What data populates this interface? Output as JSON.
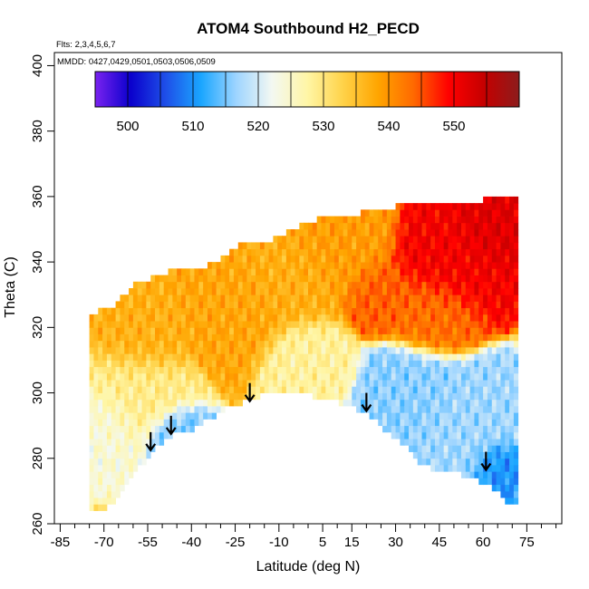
{
  "chart_data": {
    "type": "heatmap",
    "title": "ATOM4 Southbound H2_PECD",
    "flights_note": "Flts: 2,3,4,5,6,7",
    "dates_note": "MMDD: 0427,0429,0501,0503,0506,0509",
    "xlabel": "Latitude (deg N)",
    "ylabel": "Theta (C)",
    "xlim": [
      -87,
      87
    ],
    "ylim": [
      260,
      404
    ],
    "x_ticks": [
      -85,
      -70,
      -55,
      -40,
      -25,
      -10,
      5,
      15,
      30,
      45,
      60,
      75
    ],
    "x_tick_labels": [
      "-85",
      "-70",
      "-55",
      "-40",
      "-25",
      "-10",
      "5",
      "15",
      "30",
      "45",
      "60",
      "75"
    ],
    "x_minor_ticks": [
      -80,
      -75,
      -65,
      -60,
      -50,
      -45,
      -35,
      -30,
      -20,
      -15,
      -5,
      0,
      10,
      20,
      25,
      35,
      40,
      50,
      55,
      65,
      70,
      80,
      85
    ],
    "y_ticks": [
      260,
      280,
      300,
      320,
      340,
      360,
      380,
      400
    ],
    "y_tick_labels": [
      "260",
      "280",
      "300",
      "320",
      "340",
      "360",
      "380",
      "400"
    ],
    "colorbar": {
      "min": 495,
      "max": 560,
      "ticks": [
        500,
        510,
        520,
        530,
        540,
        550
      ],
      "tick_labels": [
        "500",
        "510",
        "520",
        "530",
        "540",
        "550"
      ],
      "colors": [
        "#7a22f0",
        "#0a00cc",
        "#1e4fe8",
        "#1aa6ff",
        "#9fd5ff",
        "#f3f8f2",
        "#fff6a6",
        "#ffd34a",
        "#ffa500",
        "#ff6a00",
        "#ff0000",
        "#c50000",
        "#8c1c1c"
      ]
    },
    "coverage": {
      "top": [
        [
          -72,
          324
        ],
        [
          -66,
          326
        ],
        [
          -60,
          332
        ],
        [
          -54,
          334
        ],
        [
          -48,
          336
        ],
        [
          -42,
          337
        ],
        [
          -36,
          337
        ],
        [
          -30,
          340
        ],
        [
          -24,
          344
        ],
        [
          -18,
          346
        ],
        [
          -12,
          346
        ],
        [
          -6,
          349
        ],
        [
          0,
          351
        ],
        [
          6,
          353
        ],
        [
          12,
          354
        ],
        [
          18,
          354
        ],
        [
          24,
          356
        ],
        [
          30,
          356
        ],
        [
          36,
          357
        ],
        [
          42,
          357
        ],
        [
          48,
          358
        ],
        [
          54,
          358
        ],
        [
          60,
          358
        ],
        [
          66,
          359
        ],
        [
          70,
          359
        ]
      ],
      "bottom": [
        [
          -75,
          265
        ],
        [
          -70,
          265
        ],
        [
          -64,
          270
        ],
        [
          -58,
          278
        ],
        [
          -54,
          282
        ],
        [
          -50,
          286
        ],
        [
          -46,
          288
        ],
        [
          -40,
          289
        ],
        [
          -34,
          293
        ],
        [
          -28,
          296
        ],
        [
          -22,
          298
        ],
        [
          -16,
          300
        ],
        [
          -10,
          301
        ],
        [
          -4,
          300
        ],
        [
          2,
          300
        ],
        [
          8,
          299
        ],
        [
          14,
          297
        ],
        [
          20,
          295
        ],
        [
          26,
          290
        ],
        [
          32,
          286
        ],
        [
          38,
          280
        ],
        [
          44,
          277
        ],
        [
          50,
          277
        ],
        [
          56,
          275
        ],
        [
          62,
          273
        ],
        [
          68,
          268
        ],
        [
          71,
          266
        ]
      ],
      "left_edge": [
        [
          -75,
          265
        ],
        [
          -76,
          290
        ],
        [
          -75,
          310
        ],
        [
          -72,
          324
        ]
      ],
      "right_edge": [
        [
          70,
          359
        ],
        [
          72,
          340
        ],
        [
          73,
          310
        ],
        [
          73,
          290
        ],
        [
          72,
          266
        ]
      ]
    },
    "regions": [
      {
        "lat": -60,
        "theta": 300,
        "value": 529,
        "spread": 10
      },
      {
        "lat": -70,
        "theta": 290,
        "value": 524,
        "spread": 8
      },
      {
        "lat": -45,
        "theta": 286,
        "value": 515,
        "spread": 6
      },
      {
        "lat": -58,
        "theta": 318,
        "value": 537,
        "spread": 9
      },
      {
        "lat": -25,
        "theta": 326,
        "value": 538,
        "spread": 10
      },
      {
        "lat": -5,
        "theta": 335,
        "value": 537,
        "spread": 10
      },
      {
        "lat": 10,
        "theta": 345,
        "value": 539,
        "spread": 10
      },
      {
        "lat": 0,
        "theta": 310,
        "value": 528,
        "spread": 8
      },
      {
        "lat": 35,
        "theta": 300,
        "value": 516,
        "spread": 9
      },
      {
        "lat": 55,
        "theta": 290,
        "value": 517,
        "spread": 10
      },
      {
        "lat": 65,
        "theta": 278,
        "value": 510,
        "spread": 5
      },
      {
        "lat": 48,
        "theta": 340,
        "value": 550,
        "spread": 10
      },
      {
        "lat": 62,
        "theta": 350,
        "value": 552,
        "spread": 7
      },
      {
        "lat": 42,
        "theta": 325,
        "value": 543,
        "spread": 8
      },
      {
        "lat": 25,
        "theta": 330,
        "value": 544,
        "spread": 7
      }
    ],
    "arrows": [
      {
        "lat": -54,
        "theta": 288,
        "label": ""
      },
      {
        "lat": -47,
        "theta": 293,
        "label": ""
      },
      {
        "lat": -20,
        "theta": 303,
        "label": ""
      },
      {
        "lat": 20,
        "theta": 300,
        "label": ""
      },
      {
        "lat": 61,
        "theta": 282,
        "label": ""
      }
    ],
    "grid": false,
    "legend": "colorbar-top"
  }
}
